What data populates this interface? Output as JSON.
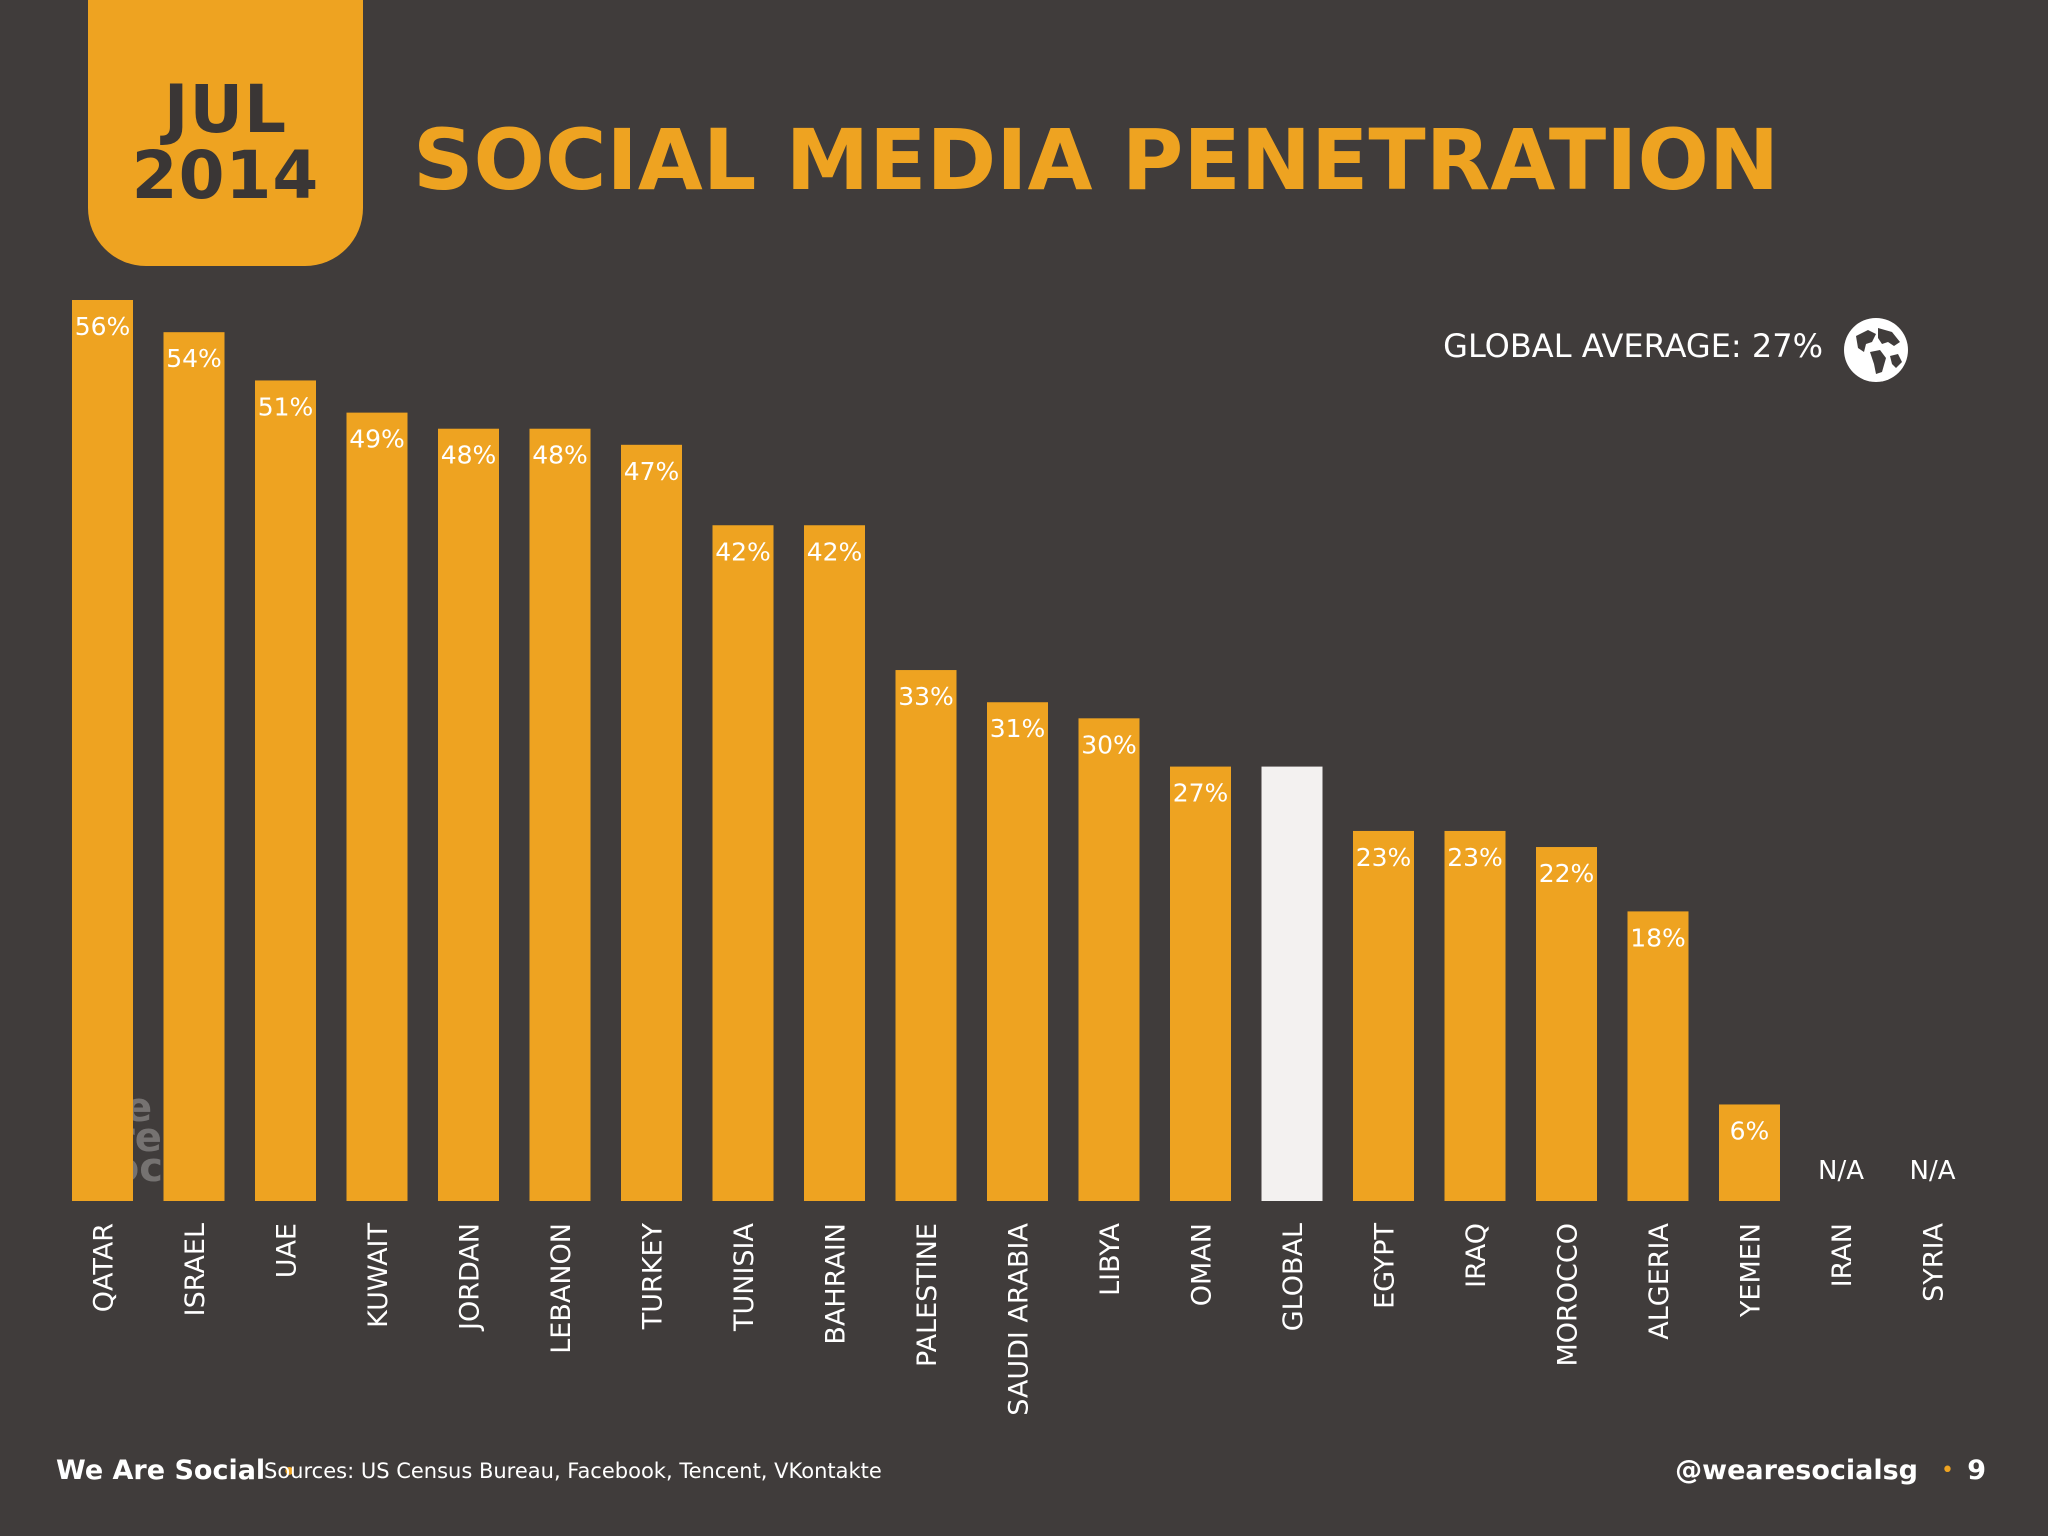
{
  "header": {
    "date_line1": "JUL",
    "date_line2": "2014",
    "title": "SOCIAL MEDIA PENETRATION"
  },
  "global_average_label": "GLOBAL AVERAGE: 27%",
  "watermark": "we are social",
  "footer": {
    "brand": "We Are Social",
    "sources": "Sources: US Census Bureau, Facebook, Tencent, VKontakte",
    "handle": "@wearesocialsg",
    "page_number": "9"
  },
  "colors": {
    "background": "#403c3b",
    "bar": "#eea321",
    "highlight_bar": "#f3f1f0",
    "text_dark": "#3a3635"
  },
  "chart_data": {
    "type": "bar",
    "ylim": [
      0,
      60
    ],
    "grid": false,
    "categories": [
      "QATAR",
      "ISRAEL",
      "UAE",
      "KUWAIT",
      "JORDAN",
      "LEBANON",
      "TURKEY",
      "TUNISIA",
      "BAHRAIN",
      "PALESTINE",
      "SAUDI ARABIA",
      "LIBYA",
      "OMAN",
      "GLOBAL",
      "EGYPT",
      "IRAQ",
      "MOROCCO",
      "ALGERIA",
      "YEMEN",
      "IRAN",
      "SYRIA"
    ],
    "values": [
      56,
      54,
      51,
      49,
      48,
      48,
      47,
      42,
      42,
      33,
      31,
      30,
      27,
      27,
      23,
      23,
      22,
      18,
      6,
      null,
      null
    ],
    "labels": [
      "56%",
      "54%",
      "51%",
      "49%",
      "48%",
      "48%",
      "47%",
      "42%",
      "42%",
      "33%",
      "31%",
      "30%",
      "27%",
      "",
      "23%",
      "23%",
      "22%",
      "18%",
      "6%",
      "N/A",
      "N/A"
    ],
    "highlight": "GLOBAL"
  }
}
